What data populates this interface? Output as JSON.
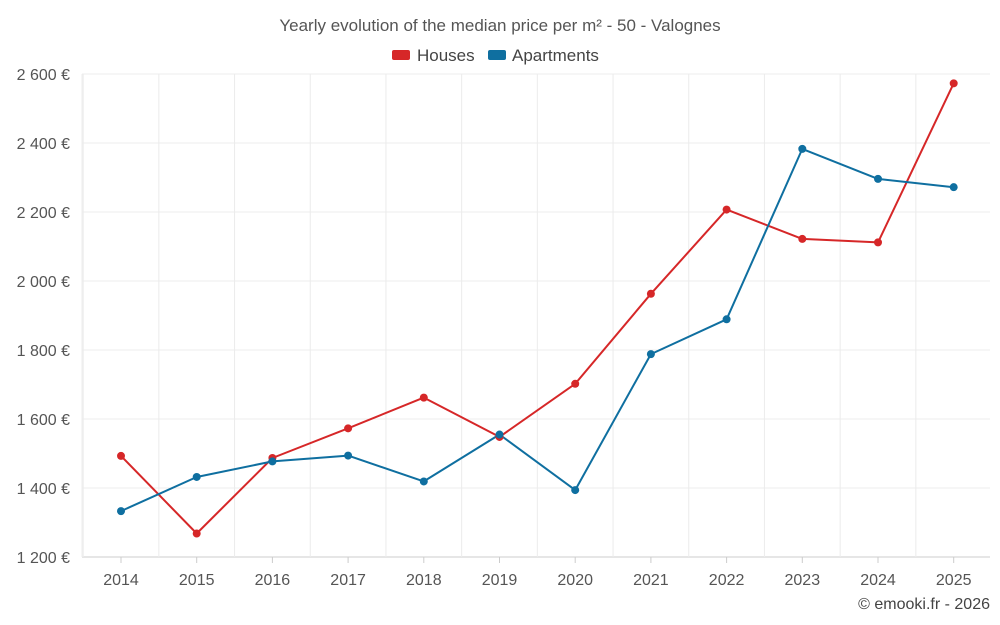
{
  "chart_data": {
    "type": "line",
    "title": "Yearly evolution of the median price per m² - 50 - Valognes",
    "xlabel": "",
    "ylabel": "",
    "categories": [
      "2014",
      "2015",
      "2016",
      "2017",
      "2018",
      "2019",
      "2020",
      "2021",
      "2022",
      "2023",
      "2024",
      "2025"
    ],
    "ylim": [
      1200,
      2600
    ],
    "yticks": [
      1200,
      1400,
      1600,
      1800,
      2000,
      2200,
      2400,
      2600
    ],
    "ytick_labels": [
      "1 200 €",
      "1 400 €",
      "1 600 €",
      "1 800 €",
      "2 000 €",
      "2 200 €",
      "2 400 €",
      "2 600 €"
    ],
    "grid": true,
    "legend_position": "top-center",
    "series": [
      {
        "name": "Houses",
        "color": "#d62728",
        "values": [
          1493,
          1268,
          1487,
          1573,
          1662,
          1548,
          1702,
          1963,
          2207,
          2122,
          2112,
          2573
        ]
      },
      {
        "name": "Apartments",
        "color": "#0f6fa0",
        "values": [
          1333,
          1432,
          1477,
          1494,
          1419,
          1555,
          1394,
          1788,
          1889,
          2383,
          2296,
          2272
        ]
      }
    ],
    "credit": "© emooki.fr - 2026"
  }
}
